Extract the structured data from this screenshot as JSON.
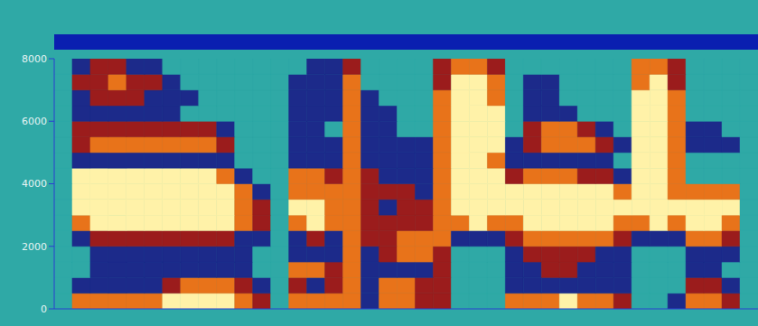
{
  "chart_data": {
    "type": "heatmap",
    "tick_labels": "y",
    "grid": false,
    "xlim": [
      0,
      39
    ],
    "ylim": [
      0,
      8000
    ],
    "yticks": [
      0,
      2000,
      4000,
      6000,
      8000
    ],
    "color_range": [
      0,
      4
    ],
    "x_bins": [
      0,
      1,
      2,
      3,
      4,
      5,
      6,
      7,
      8,
      9,
      10,
      11,
      12,
      13,
      14,
      15,
      16,
      17,
      18,
      19,
      20,
      21,
      22,
      23,
      24,
      25,
      26,
      27,
      28,
      29,
      30,
      31,
      32,
      33,
      34,
      35,
      36,
      37,
      38,
      39
    ],
    "y_bins": [
      0,
      500,
      1000,
      1500,
      2000,
      2500,
      3000,
      3500,
      4000,
      4500,
      5000,
      5500,
      6000,
      6500,
      7000,
      7500,
      8000
    ],
    "cells": [
      [
        0,
        3,
        3,
        3,
        3,
        3,
        4,
        4,
        4,
        4,
        3,
        2,
        0,
        3,
        3,
        3,
        3,
        1,
        3,
        3,
        2,
        2,
        0,
        0,
        0,
        3,
        3,
        3,
        4,
        3,
        3,
        2,
        0,
        0,
        1,
        3,
        3,
        2,
        0
      ],
      [
        0,
        1,
        1,
        1,
        1,
        1,
        2,
        3,
        3,
        3,
        2,
        1,
        0,
        2,
        1,
        2,
        3,
        1,
        3,
        3,
        2,
        2,
        0,
        0,
        0,
        1,
        1,
        1,
        1,
        1,
        1,
        1,
        0,
        0,
        0,
        2,
        2,
        1,
        0
      ],
      [
        0,
        0,
        1,
        1,
        1,
        1,
        1,
        1,
        1,
        1,
        1,
        0,
        0,
        3,
        3,
        2,
        3,
        1,
        1,
        1,
        1,
        2,
        0,
        0,
        0,
        1,
        1,
        2,
        2,
        1,
        1,
        1,
        0,
        0,
        0,
        1,
        1,
        0,
        0
      ],
      [
        0,
        0,
        1,
        1,
        1,
        1,
        1,
        1,
        1,
        1,
        1,
        0,
        0,
        1,
        1,
        1,
        3,
        1,
        2,
        3,
        3,
        2,
        0,
        0,
        0,
        1,
        2,
        2,
        2,
        2,
        1,
        1,
        0,
        0,
        0,
        1,
        1,
        1,
        0
      ],
      [
        0,
        1,
        2,
        2,
        2,
        2,
        2,
        2,
        2,
        2,
        1,
        1,
        0,
        1,
        2,
        1,
        3,
        2,
        2,
        3,
        3,
        3,
        1,
        1,
        1,
        2,
        3,
        3,
        3,
        3,
        3,
        2,
        1,
        1,
        1,
        3,
        3,
        2,
        0
      ],
      [
        0,
        3,
        4,
        4,
        4,
        4,
        4,
        4,
        4,
        4,
        3,
        2,
        0,
        3,
        4,
        3,
        3,
        2,
        2,
        2,
        2,
        3,
        3,
        4,
        3,
        3,
        4,
        4,
        4,
        4,
        4,
        3,
        3,
        4,
        3,
        4,
        4,
        3,
        0
      ],
      [
        0,
        4,
        4,
        4,
        4,
        4,
        4,
        4,
        4,
        4,
        3,
        2,
        0,
        4,
        4,
        3,
        3,
        2,
        1,
        2,
        2,
        3,
        4,
        4,
        4,
        4,
        4,
        4,
        4,
        4,
        4,
        4,
        4,
        4,
        4,
        4,
        4,
        4,
        0
      ],
      [
        0,
        4,
        4,
        4,
        4,
        4,
        4,
        4,
        4,
        4,
        3,
        1,
        0,
        3,
        3,
        3,
        3,
        2,
        2,
        2,
        1,
        3,
        4,
        4,
        4,
        4,
        4,
        4,
        4,
        4,
        4,
        3,
        4,
        4,
        3,
        3,
        3,
        3,
        0
      ],
      [
        0,
        4,
        4,
        4,
        4,
        4,
        4,
        4,
        4,
        3,
        1,
        0,
        0,
        3,
        3,
        2,
        3,
        2,
        1,
        1,
        1,
        3,
        4,
        4,
        4,
        2,
        3,
        3,
        3,
        2,
        2,
        1,
        4,
        4,
        3,
        0,
        0,
        0,
        0
      ],
      [
        0,
        1,
        1,
        1,
        1,
        1,
        1,
        1,
        1,
        1,
        0,
        0,
        0,
        1,
        1,
        1,
        3,
        1,
        1,
        1,
        1,
        3,
        4,
        4,
        3,
        1,
        1,
        1,
        1,
        1,
        1,
        0,
        4,
        4,
        3,
        0,
        0,
        0,
        0
      ],
      [
        0,
        2,
        3,
        3,
        3,
        3,
        3,
        3,
        3,
        2,
        0,
        0,
        0,
        1,
        1,
        1,
        3,
        1,
        1,
        1,
        1,
        3,
        4,
        4,
        4,
        1,
        2,
        3,
        3,
        3,
        2,
        1,
        4,
        4,
        3,
        1,
        1,
        1,
        0
      ],
      [
        0,
        2,
        2,
        2,
        2,
        2,
        2,
        2,
        2,
        1,
        0,
        0,
        0,
        1,
        1,
        0,
        3,
        1,
        1,
        0,
        0,
        3,
        4,
        4,
        4,
        0,
        2,
        3,
        3,
        2,
        1,
        0,
        4,
        4,
        3,
        1,
        1,
        0,
        0
      ],
      [
        0,
        1,
        1,
        1,
        1,
        1,
        1,
        0,
        0,
        0,
        0,
        0,
        0,
        1,
        1,
        1,
        3,
        1,
        1,
        0,
        0,
        3,
        4,
        4,
        4,
        0,
        1,
        1,
        1,
        0,
        0,
        0,
        4,
        4,
        3,
        0,
        0,
        0,
        0
      ],
      [
        0,
        1,
        2,
        2,
        2,
        1,
        1,
        1,
        0,
        0,
        0,
        0,
        0,
        1,
        1,
        1,
        3,
        1,
        0,
        0,
        0,
        3,
        4,
        4,
        3,
        0,
        1,
        1,
        0,
        0,
        0,
        0,
        4,
        4,
        3,
        0,
        0,
        0,
        0
      ],
      [
        0,
        2,
        2,
        3,
        2,
        2,
        1,
        0,
        0,
        0,
        0,
        0,
        0,
        1,
        1,
        1,
        3,
        0,
        0,
        0,
        0,
        2,
        4,
        4,
        3,
        0,
        1,
        1,
        0,
        0,
        0,
        0,
        3,
        4,
        2,
        0,
        0,
        0,
        0
      ],
      [
        0,
        1,
        2,
        2,
        1,
        1,
        0,
        0,
        0,
        0,
        0,
        0,
        0,
        0,
        1,
        1,
        2,
        0,
        0,
        0,
        0,
        2,
        3,
        3,
        2,
        0,
        0,
        0,
        0,
        0,
        0,
        0,
        3,
        3,
        2,
        0,
        0,
        0,
        0
      ]
    ]
  }
}
